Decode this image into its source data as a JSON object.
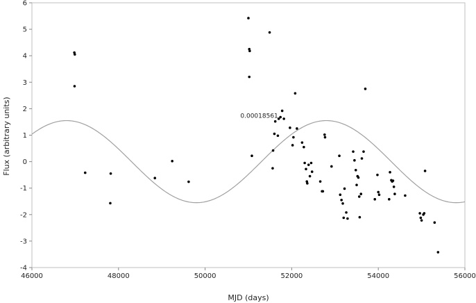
{
  "chart_data": {
    "type": "scatter",
    "xlabel": "MJD (days)",
    "ylabel": "Flux (arbitrary units)",
    "xlim": [
      46000,
      56000
    ],
    "ylim": [
      -4,
      6
    ],
    "x_ticks": [
      46000,
      48000,
      50000,
      52000,
      54000,
      56000
    ],
    "y_ticks": [
      -4,
      -3,
      -2,
      -1,
      0,
      1,
      2,
      3,
      4,
      5,
      6
    ],
    "grid": false,
    "annotation": {
      "text": "0.00018561",
      "x": 51250,
      "y": 1.65
    },
    "series": [
      {
        "kind": "points",
        "points": [
          [
            46980,
            4.12
          ],
          [
            46990,
            4.05
          ],
          [
            46985,
            2.85
          ],
          [
            47230,
            -0.42
          ],
          [
            47820,
            -0.45
          ],
          [
            47810,
            -1.57
          ],
          [
            48840,
            -0.62
          ],
          [
            49240,
            0.02
          ],
          [
            49620,
            -0.76
          ],
          [
            51000,
            5.42
          ],
          [
            51020,
            4.25
          ],
          [
            51030,
            4.18
          ],
          [
            51020,
            3.2
          ],
          [
            51080,
            0.22
          ],
          [
            51490,
            4.88
          ],
          [
            51560,
            -0.25
          ],
          [
            51570,
            0.42
          ],
          [
            51600,
            1.05
          ],
          [
            51620,
            1.52
          ],
          [
            51680,
            0.98
          ],
          [
            51700,
            1.62
          ],
          [
            51740,
            1.68
          ],
          [
            51780,
            1.92
          ],
          [
            51820,
            1.62
          ],
          [
            51960,
            1.28
          ],
          [
            52020,
            0.62
          ],
          [
            52040,
            0.92
          ],
          [
            52080,
            2.58
          ],
          [
            52120,
            1.25
          ],
          [
            52240,
            0.72
          ],
          [
            52280,
            0.55
          ],
          [
            52300,
            -0.05
          ],
          [
            52330,
            -0.28
          ],
          [
            52350,
            -0.75
          ],
          [
            52360,
            -0.82
          ],
          [
            52390,
            -0.12
          ],
          [
            52420,
            -0.55
          ],
          [
            52450,
            -0.05
          ],
          [
            52470,
            -0.38
          ],
          [
            52660,
            -0.75
          ],
          [
            52700,
            -1.12
          ],
          [
            52720,
            -1.12
          ],
          [
            52760,
            1.02
          ],
          [
            52770,
            0.92
          ],
          [
            52920,
            -0.18
          ],
          [
            53100,
            0.22
          ],
          [
            53120,
            -1.25
          ],
          [
            53150,
            -1.45
          ],
          [
            53180,
            -1.58
          ],
          [
            53200,
            -2.12
          ],
          [
            53220,
            -1.02
          ],
          [
            53260,
            -1.92
          ],
          [
            53290,
            -2.15
          ],
          [
            53420,
            0.38
          ],
          [
            53450,
            0.05
          ],
          [
            53480,
            -0.32
          ],
          [
            53500,
            -0.88
          ],
          [
            53520,
            -0.55
          ],
          [
            53540,
            -0.6
          ],
          [
            53560,
            -1.32
          ],
          [
            53570,
            -2.1
          ],
          [
            53600,
            -1.22
          ],
          [
            53620,
            0.12
          ],
          [
            53660,
            0.38
          ],
          [
            53700,
            2.75
          ],
          [
            53920,
            -1.42
          ],
          [
            53980,
            -0.5
          ],
          [
            54000,
            -1.15
          ],
          [
            54020,
            -1.25
          ],
          [
            54250,
            -1.42
          ],
          [
            54270,
            -0.4
          ],
          [
            54300,
            -0.7
          ],
          [
            54320,
            -0.75
          ],
          [
            54340,
            -0.72
          ],
          [
            54360,
            -0.95
          ],
          [
            54380,
            -1.22
          ],
          [
            54620,
            -1.28
          ],
          [
            54960,
            -1.95
          ],
          [
            54980,
            -2.12
          ],
          [
            55000,
            -2.22
          ],
          [
            55040,
            -2.0
          ],
          [
            55060,
            -1.95
          ],
          [
            55080,
            -0.35
          ],
          [
            55300,
            -2.3
          ],
          [
            55380,
            -3.42
          ]
        ]
      },
      {
        "kind": "fit-curve",
        "model": "sinusoid",
        "amplitude": 1.55,
        "period": 6000,
        "peak_x": 46800,
        "offset": 0
      }
    ]
  },
  "colors": {
    "points": "#000000",
    "curve": "#a0a0a0",
    "frame": "#bfbfbf",
    "text": "#222222"
  }
}
